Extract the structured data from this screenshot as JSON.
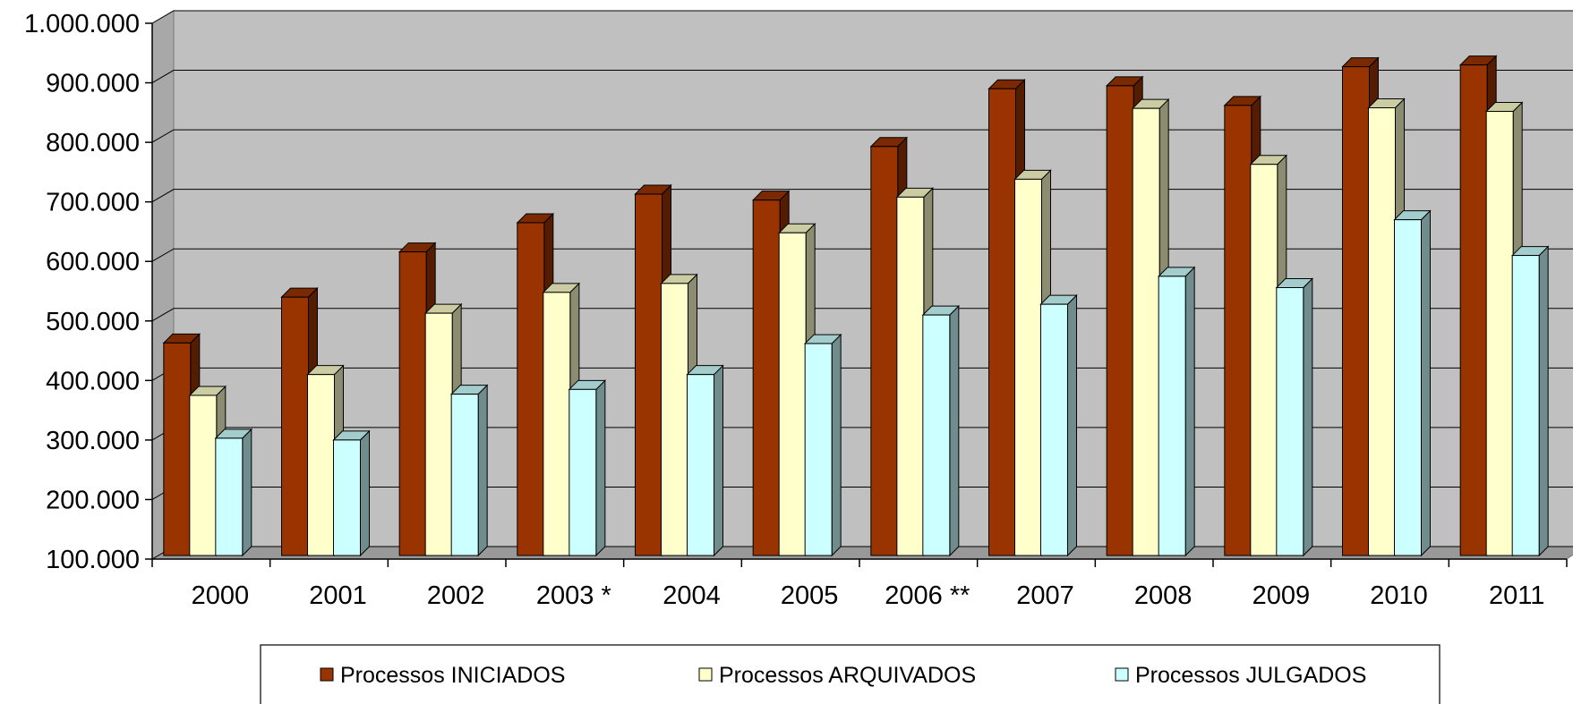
{
  "chart_data": {
    "type": "bar",
    "title": "",
    "xlabel": "",
    "ylabel": "",
    "ylim": [
      100000,
      1000000
    ],
    "yticks": [
      100000,
      200000,
      300000,
      400000,
      500000,
      600000,
      700000,
      800000,
      900000,
      1000000
    ],
    "ytick_labels": [
      "100.000",
      "200.000",
      "300.000",
      "400.000",
      "500.000",
      "600.000",
      "700.000",
      "800.000",
      "900.000",
      "1.000.000"
    ],
    "grid": true,
    "legend_position": "bottom",
    "categories": [
      "2000",
      "2001",
      "2002",
      "2003 *",
      "2004",
      "2005",
      "2006 **",
      "2007",
      "2008",
      "2009",
      "2010",
      "2011"
    ],
    "series": [
      {
        "name": "Processos INICIADOS",
        "color": "#993300",
        "values": [
          463000,
          540000,
          616000,
          665000,
          713000,
          703000,
          793000,
          890000,
          895000,
          862000,
          927000,
          930000
        ]
      },
      {
        "name": "Processos ARQUIVADOS",
        "color": "#FFFFCC",
        "values": [
          375000,
          410000,
          513000,
          548000,
          563000,
          648000,
          708000,
          738000,
          857000,
          763000,
          858000,
          852000
        ]
      },
      {
        "name": "Processos JULGADOS",
        "color": "#CCFFFF",
        "values": [
          303000,
          300000,
          377000,
          385000,
          410000,
          462000,
          510000,
          528000,
          575000,
          556000,
          670000,
          610000
        ]
      }
    ]
  }
}
